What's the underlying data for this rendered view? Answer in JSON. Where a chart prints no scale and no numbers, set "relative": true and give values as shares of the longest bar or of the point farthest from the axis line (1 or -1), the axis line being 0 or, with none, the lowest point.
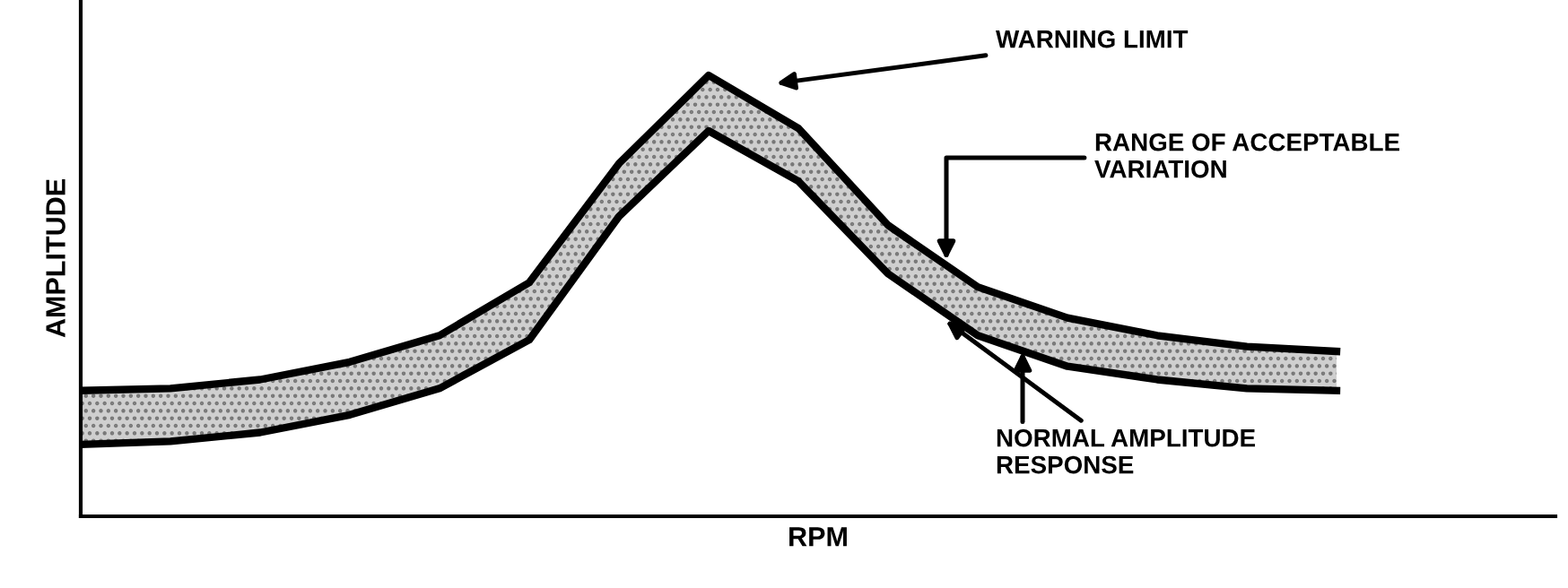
{
  "chart_data": {
    "type": "line",
    "relative": true,
    "xlabel": "RPM",
    "ylabel": "AMPLITUDE",
    "categories": [
      null,
      null,
      null,
      null,
      null,
      null,
      null,
      null,
      null,
      null,
      null,
      null,
      null,
      null,
      null
    ],
    "series": [
      {
        "name": "NORMAL AMPLITUDE\nRESPONSE",
        "color": "#000000",
        "values": [
          0.163,
          0.17,
          0.19,
          0.23,
          0.29,
          0.4,
          0.68,
          0.874,
          0.76,
          0.55,
          0.41,
          0.34,
          0.31,
          0.29,
          0.285
        ],
        "lower": [
          0.163,
          0.17,
          0.19,
          0.23,
          0.29,
          0.4,
          0.68,
          0.874,
          0.76,
          0.55,
          0.41,
          0.34,
          0.31,
          0.29,
          0.285
        ],
        "upper": [
          0.285,
          0.29,
          0.31,
          0.35,
          0.41,
          0.53,
          0.8,
          1.0,
          0.88,
          0.66,
          0.52,
          0.45,
          0.41,
          0.385,
          0.374
        ]
      },
      {
        "name": "WARNING LIMIT",
        "color": "#000000",
        "values": [
          0.285,
          0.29,
          0.31,
          0.35,
          0.41,
          0.53,
          0.8,
          1.0,
          0.88,
          0.66,
          0.52,
          0.45,
          0.41,
          0.385,
          0.374
        ]
      }
    ],
    "annotations": [
      "RANGE OF ACCEPTABLE\nVARIATION"
    ],
    "line_style": "solid",
    "marker": "none"
  }
}
